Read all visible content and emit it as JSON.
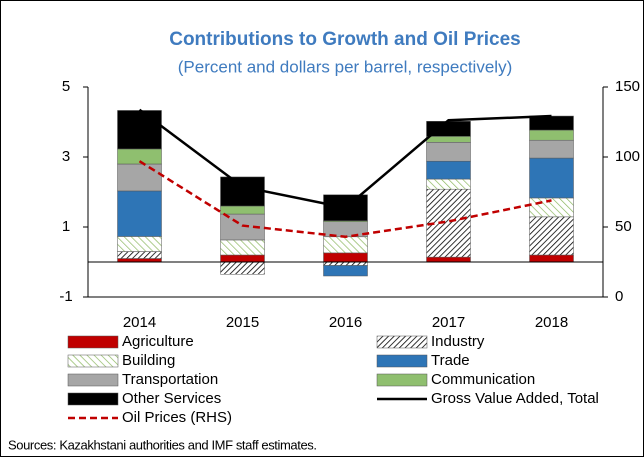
{
  "chart_data": {
    "type": "bar",
    "stacked": true,
    "title": "Contributions to Growth and Oil Prices",
    "subtitle": "(Percent and dollars per barrel, respectively)",
    "source": "Sources: Kazakhstani authorities and IMF staff estimates.",
    "categories": [
      "2014",
      "2015",
      "2016",
      "2017",
      "2018"
    ],
    "ylim": [
      -1,
      5
    ],
    "yticks": [
      -1,
      1,
      3,
      5
    ],
    "y2lim": [
      0,
      150
    ],
    "y2ticks": [
      0,
      50,
      100,
      150
    ],
    "series": [
      {
        "name": "Agriculture",
        "color": "#c00000",
        "hatch": false,
        "values": [
          0.1,
          0.2,
          0.26,
          0.14,
          0.2
        ]
      },
      {
        "name": "Industry",
        "color": "#000000",
        "hatch": true,
        "values": [
          0.2,
          -0.35,
          -0.1,
          1.94,
          1.09
        ]
      },
      {
        "name": "Building",
        "color": "#8cb860",
        "hatch": true,
        "values": [
          0.43,
          0.43,
          0.46,
          0.29,
          0.54
        ]
      },
      {
        "name": "Trade",
        "color": "#2e75b6",
        "hatch": false,
        "values": [
          1.3,
          0,
          -0.3,
          0.51,
          1.14
        ]
      },
      {
        "name": "Transportation",
        "color": "#a6a6a6",
        "hatch": false,
        "values": [
          0.77,
          0.74,
          0.43,
          0.54,
          0.51
        ]
      },
      {
        "name": "Communication",
        "color": "#8fbf6f",
        "hatch": false,
        "values": [
          0.43,
          0.23,
          0.03,
          0.17,
          0.29
        ]
      },
      {
        "name": "Other Services",
        "color": "#c00000",
        "hatch": true,
        "values": [
          1.1,
          0.83,
          0.74,
          0.43,
          0.4
        ]
      },
      {
        "name": "Gross Value Added, Total",
        "type": "line",
        "color": "#000000",
        "dashed": false,
        "values": [
          4.35,
          2.15,
          1.55,
          4.05,
          4.17
        ]
      },
      {
        "name": "Oil Prices (RHS)",
        "type": "line",
        "axis": "y2",
        "color": "#c00000",
        "dashed": true,
        "values": [
          97,
          51,
          43,
          54,
          69
        ]
      }
    ]
  }
}
